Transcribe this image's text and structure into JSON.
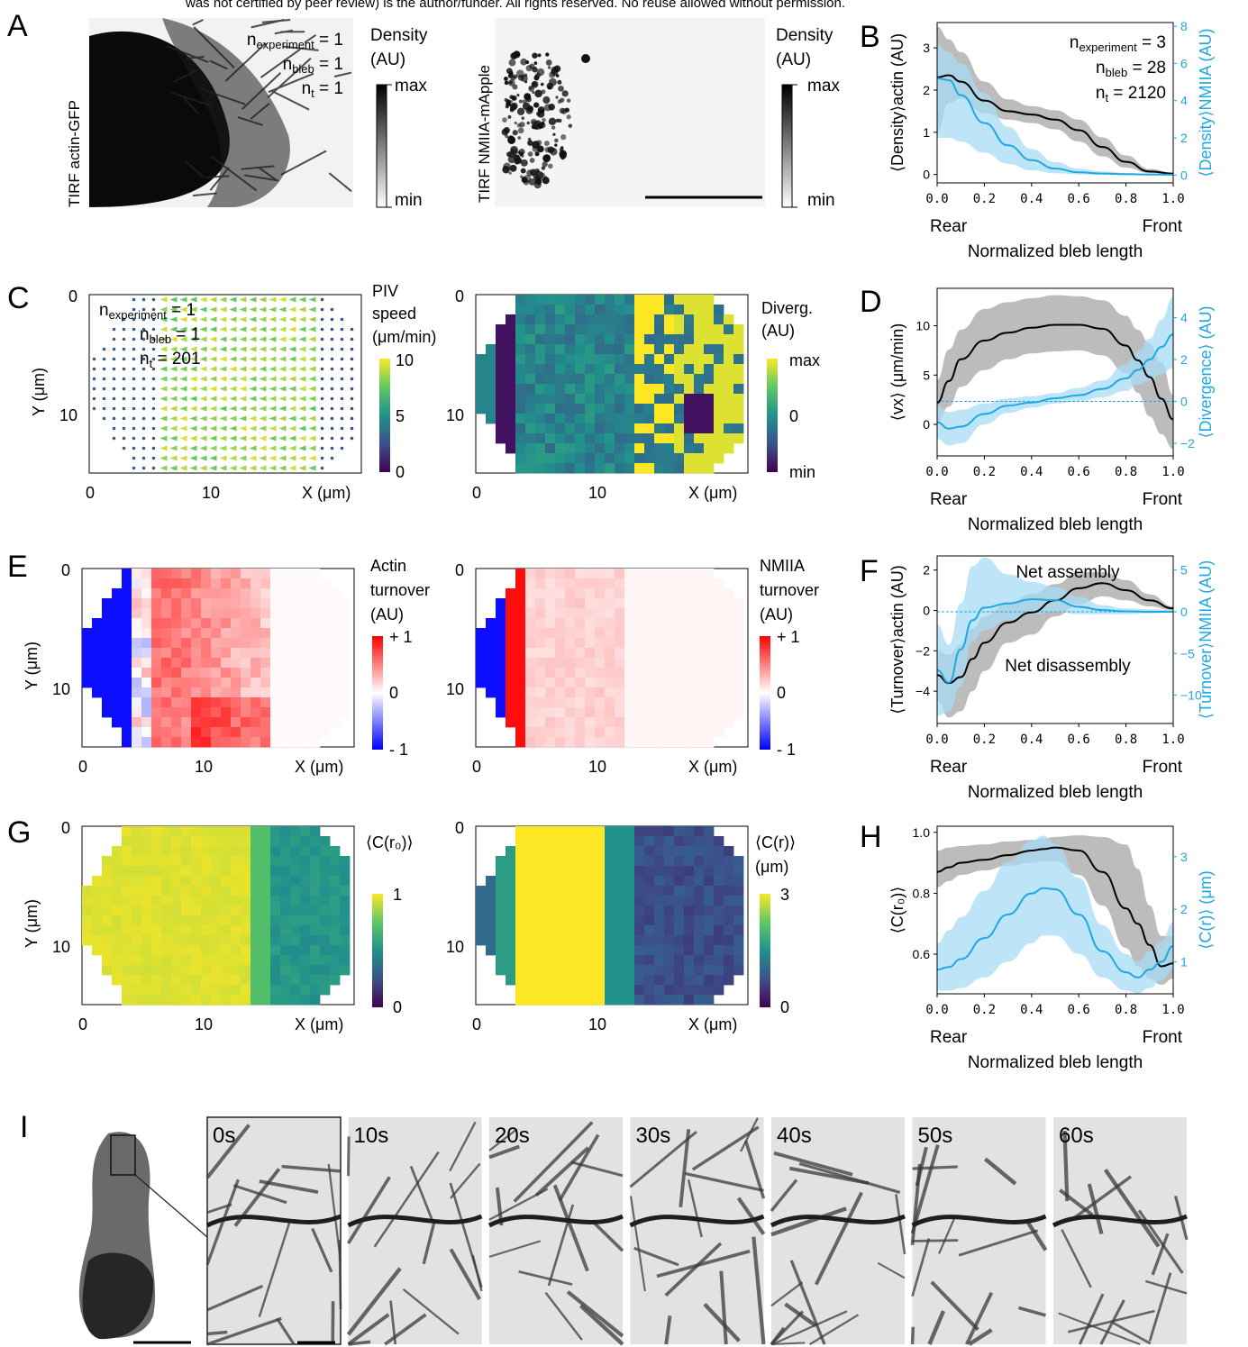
{
  "header_text": "was not certified by peer review) is the author/funder. All rights reserved. No reuse allowed without permission.",
  "panels": {
    "A": "A",
    "B": "B",
    "C": "C",
    "D": "D",
    "E": "E",
    "F": "F",
    "G": "G",
    "H": "H",
    "I": "I"
  },
  "colors": {
    "actin": "#000000",
    "nmiia": "#1fa8e0",
    "actin_band": "#b8b8b8",
    "nmiia_band": "#a8dcf4",
    "red": "#ee1c1c",
    "blue": "#1414f0",
    "yellow": "#fde725",
    "purple": "#440154"
  },
  "panel_a": {
    "left_label": "TIRF actin-GFP",
    "right_label": "TIRF NMIIA-mApple",
    "n_exp_base": "n",
    "n_exp_sub": "experiment",
    "n_exp_val": " = 1",
    "n_bleb_base": "n",
    "n_bleb_sub": "bleb",
    "n_bleb_val": " = 1",
    "n_t_base": "n",
    "n_t_sub": "t",
    "n_t_val": " = 1",
    "colorbar_title_1": "Density",
    "colorbar_title_2": "(AU)",
    "cb_max": "max",
    "cb_min": "min"
  },
  "panel_c": {
    "n_exp_base": "n",
    "n_exp_sub": "experiment",
    "n_exp_val": " = 1",
    "n_bleb_base": "n",
    "n_bleb_sub": "bleb",
    "n_bleb_val": " = 1",
    "n_t_base": "n",
    "n_t_sub": "t",
    "n_t_val": " = 201",
    "cb1_title_1": "PIV",
    "cb1_title_2": "speed",
    "cb1_title_3": "(μm/min)",
    "cb1_ticks": [
      "10",
      "5",
      "0"
    ],
    "cb2_title_1": "Diverg.",
    "cb2_title_2": "(AU)",
    "cb2_ticks": [
      "max",
      "0",
      "min"
    ]
  },
  "panel_e": {
    "cb1_title_1": "Actin",
    "cb1_title_2": "turnover",
    "cb1_title_3": "(AU)",
    "cb2_title_1": "NMIIA",
    "cb2_title_2": "turnover",
    "cb2_title_3": "(AU)",
    "cb_ticks": [
      "+ 1",
      "0",
      "- 1"
    ]
  },
  "panel_g": {
    "cb1_title": "⟨C(r₀)⟩",
    "cb1_ticks": [
      "1",
      "0"
    ],
    "cb2_title_1": "⟨C(r)⟩",
    "cb2_title_2": "(μm)",
    "cb2_ticks": [
      "3",
      "0"
    ]
  },
  "map_axes": {
    "ylabel": "Y (μm)",
    "xlabel": "X (μm)",
    "x_ticks": [
      "0",
      "10"
    ],
    "y_ticks": [
      "0",
      "10"
    ]
  },
  "panel_i": {
    "times": [
      "0s",
      "10s",
      "20s",
      "30s",
      "40s",
      "50s",
      "60s"
    ]
  },
  "chart_data": [
    {
      "panel": "B",
      "type": "line",
      "xlabel": "Normalized bleb length",
      "x_left_label": "Rear",
      "x_right_label": "Front",
      "ylabel": "⟨Density⟩actin (AU)",
      "ylabel2": "⟨Density⟩NMIIA (AU)",
      "xlim": [
        0,
        1
      ],
      "ylim": [
        -0.2,
        3.6
      ],
      "ylim2": [
        -0.42,
        8.2
      ],
      "x_ticks": [
        "0.0",
        "0.2",
        "0.4",
        "0.6",
        "0.8",
        "1.0"
      ],
      "y_ticks": [
        "0",
        "1",
        "2",
        "3"
      ],
      "y2_ticks": [
        "0",
        "2",
        "4",
        "6",
        "8"
      ],
      "annotation": [
        "n",
        "experiment",
        " = 3",
        "n",
        "bleb",
        " = 28",
        "n",
        "t",
        " = 2120"
      ],
      "x": [
        0,
        0.05,
        0.1,
        0.2,
        0.3,
        0.4,
        0.5,
        0.6,
        0.7,
        0.8,
        0.9,
        1.0
      ],
      "series": [
        {
          "axis": "left",
          "mean": [
            2.3,
            2.35,
            2.2,
            1.75,
            1.5,
            1.42,
            1.3,
            1.05,
            0.65,
            0.3,
            0.07,
            0.02
          ],
          "lower": [
            1.0,
            1.7,
            1.8,
            1.45,
            1.3,
            1.22,
            1.07,
            0.78,
            0.43,
            0.16,
            0.03,
            0.01
          ],
          "upper": [
            3.5,
            3.2,
            2.9,
            2.2,
            1.78,
            1.62,
            1.52,
            1.3,
            0.88,
            0.45,
            0.13,
            0.04
          ]
        },
        {
          "axis": "right",
          "mean": [
            5.2,
            5.1,
            4.3,
            2.8,
            1.6,
            0.8,
            0.35,
            0.15,
            0.08,
            0.05,
            0.03,
            0.02
          ],
          "lower": [
            2.0,
            2.0,
            1.8,
            1.2,
            0.6,
            0.25,
            0.1,
            0.04,
            0.02,
            0.01,
            0.01,
            0.0
          ],
          "upper": [
            7.0,
            6.6,
            6.0,
            4.4,
            2.6,
            1.4,
            0.7,
            0.35,
            0.2,
            0.12,
            0.06,
            0.04
          ]
        }
      ]
    },
    {
      "panel": "D",
      "type": "line",
      "xlabel": "Normalized bleb length",
      "x_left_label": "Rear",
      "x_right_label": "Front",
      "ylabel": "⟨vx⟩ (μm/min)",
      "ylabel2": "⟨Divergence⟩ (AU)",
      "xlim": [
        0,
        1
      ],
      "ylim": [
        -3.2,
        13.8
      ],
      "ylim2": [
        -2.6,
        5.4
      ],
      "x_ticks": [
        "0.0",
        "0.2",
        "0.4",
        "0.6",
        "0.8",
        "1.0"
      ],
      "y_ticks": [
        "0",
        "5",
        "10"
      ],
      "y2_ticks": [
        "−2",
        "0",
        "2",
        "4"
      ],
      "x": [
        0,
        0.05,
        0.1,
        0.2,
        0.3,
        0.4,
        0.5,
        0.6,
        0.7,
        0.8,
        0.85,
        0.9,
        0.95,
        1.0
      ],
      "series": [
        {
          "axis": "left",
          "mean": [
            2.2,
            4.4,
            6.6,
            8.5,
            9.3,
            9.8,
            10.1,
            10.1,
            9.7,
            8.0,
            6.5,
            4.8,
            2.6,
            0.5
          ],
          "lower": [
            0.2,
            1.8,
            3.8,
            5.5,
            6.6,
            7.2,
            7.4,
            7.5,
            7.0,
            5.2,
            3.2,
            0.8,
            -1.0,
            -2.5
          ],
          "upper": [
            4.5,
            7.6,
            9.6,
            11.7,
            12.4,
            12.8,
            13.1,
            13.0,
            12.6,
            11.0,
            9.6,
            8.2,
            6.3,
            3.0
          ]
        },
        {
          "axis": "right",
          "mean": [
            -1.0,
            -1.3,
            -1.2,
            -0.6,
            -0.2,
            -0.05,
            0.15,
            0.3,
            0.6,
            1.1,
            1.5,
            2.0,
            2.6,
            3.2
          ],
          "lower": [
            -1.8,
            -2.1,
            -2.0,
            -1.1,
            -0.55,
            -0.3,
            -0.1,
            0.0,
            0.2,
            0.5,
            0.8,
            1.0,
            1.3,
            1.6
          ],
          "upper": [
            -0.2,
            -0.5,
            -0.4,
            -0.1,
            0.15,
            0.25,
            0.4,
            0.65,
            1.0,
            1.8,
            2.4,
            3.0,
            3.9,
            5.0
          ]
        }
      ],
      "reference_line": 0
    },
    {
      "panel": "F",
      "type": "line",
      "xlabel": "Normalized bleb length",
      "x_left_label": "Rear",
      "x_right_label": "Front",
      "ylabel": "⟨Turnover⟩actin (AU)",
      "ylabel2": "⟨Turnover⟩NMIIA (AU)",
      "xlim": [
        0,
        1
      ],
      "ylim": [
        -5.6,
        2.7
      ],
      "ylim2": [
        -13.4,
        6.7
      ],
      "x_ticks": [
        "0.0",
        "0.2",
        "0.4",
        "0.6",
        "0.8",
        "1.0"
      ],
      "y_ticks": [
        "−4",
        "−2",
        "0",
        "2"
      ],
      "y2_ticks": [
        "−10",
        "−5",
        "0",
        "5"
      ],
      "annotations": [
        "Net assembly",
        "Net disassembly"
      ],
      "x": [
        0,
        0.05,
        0.1,
        0.15,
        0.2,
        0.3,
        0.4,
        0.5,
        0.6,
        0.7,
        0.8,
        0.9,
        1.0
      ],
      "series": [
        {
          "axis": "left",
          "mean": [
            -3.2,
            -3.6,
            -3.3,
            -2.4,
            -1.6,
            -0.6,
            -0.1,
            0.5,
            1.1,
            1.35,
            1.0,
            0.5,
            0.1
          ],
          "lower": [
            -4.5,
            -5.3,
            -5.0,
            -4.0,
            -3.0,
            -1.6,
            -1.2,
            -0.3,
            0.3,
            0.7,
            0.5,
            0.2,
            0.0
          ],
          "upper": [
            -2.0,
            -2.2,
            -1.7,
            -0.9,
            -0.3,
            0.4,
            0.8,
            1.3,
            1.9,
            1.9,
            1.5,
            0.8,
            0.2
          ]
        },
        {
          "axis": "right",
          "mean": [
            -7.0,
            -8.5,
            -4.5,
            -1.0,
            0.5,
            1.0,
            1.5,
            1.4,
            0.6,
            0.2,
            0.05,
            0.0,
            0.0
          ],
          "lower": [
            -12.5,
            -12.0,
            -9.0,
            -3.5,
            -2.2,
            -1.0,
            -0.3,
            0.0,
            -0.3,
            -0.3,
            -0.3,
            -0.2,
            -0.1
          ],
          "upper": [
            -1.5,
            -4.0,
            1.0,
            5.5,
            6.5,
            4.5,
            3.6,
            3.0,
            1.8,
            0.8,
            0.4,
            0.3,
            0.2
          ]
        }
      ],
      "reference_line": 0
    },
    {
      "panel": "H",
      "type": "line",
      "xlabel": "Normalized bleb length",
      "x_left_label": "Rear",
      "x_right_label": "Front",
      "ylabel": "⟨C(r₀)⟩",
      "ylabel2": "⟨C(r)⟩ (μm)",
      "xlim": [
        0,
        1
      ],
      "ylim": [
        0.47,
        1.02
      ],
      "ylim2": [
        0.39,
        3.58
      ],
      "x_ticks": [
        "0.0",
        "0.2",
        "0.4",
        "0.6",
        "0.8",
        "1.0"
      ],
      "y_ticks": [
        "0.6",
        "0.8",
        "1.0"
      ],
      "y2_ticks": [
        "1",
        "2",
        "3"
      ],
      "x": [
        0,
        0.05,
        0.1,
        0.2,
        0.3,
        0.4,
        0.45,
        0.5,
        0.6,
        0.7,
        0.8,
        0.85,
        0.9,
        0.95,
        1.0
      ],
      "series": [
        {
          "axis": "left",
          "mean": [
            0.87,
            0.885,
            0.9,
            0.91,
            0.925,
            0.94,
            0.945,
            0.95,
            0.94,
            0.87,
            0.75,
            0.7,
            0.63,
            0.56,
            0.57
          ],
          "lower": [
            0.82,
            0.84,
            0.86,
            0.875,
            0.89,
            0.9,
            0.905,
            0.905,
            0.86,
            0.76,
            0.62,
            0.56,
            0.52,
            0.5,
            0.52
          ],
          "upper": [
            0.94,
            0.95,
            0.955,
            0.96,
            0.97,
            0.975,
            0.98,
            0.985,
            0.99,
            0.985,
            0.96,
            0.88,
            0.76,
            0.66,
            0.66
          ]
        },
        {
          "axis": "right",
          "mean": [
            0.85,
            0.9,
            1.05,
            1.45,
            1.9,
            2.3,
            2.4,
            2.38,
            1.9,
            1.2,
            0.8,
            0.7,
            0.85,
            1.0,
            1.3
          ],
          "lower": [
            0.45,
            0.45,
            0.5,
            0.7,
            1.0,
            1.35,
            1.5,
            1.5,
            1.15,
            0.7,
            0.45,
            0.4,
            0.5,
            0.65,
            0.85
          ],
          "upper": [
            1.35,
            1.6,
            1.85,
            2.35,
            2.9,
            3.3,
            3.4,
            3.25,
            2.6,
            1.7,
            1.15,
            1.0,
            1.2,
            1.4,
            1.75
          ]
        }
      ]
    }
  ]
}
